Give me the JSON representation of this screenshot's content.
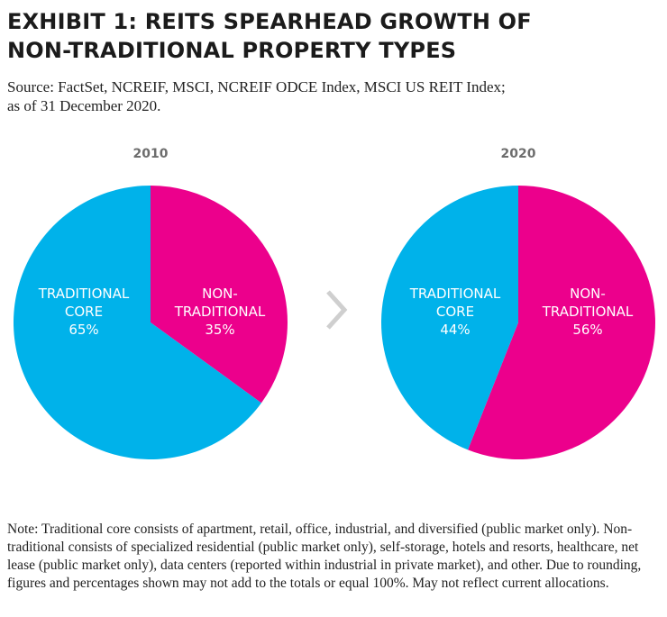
{
  "title_line1": "EXHIBIT 1: REITS SPEARHEAD GROWTH OF",
  "title_line2": "NON-TRADITIONAL PROPERTY TYPES",
  "source_line1": "Source: FactSet, NCREIF, MSCI, NCREIF ODCE Index, MSCI US REIT Index;",
  "source_line2": "as of 31 December 2020.",
  "note": "Note: Traditional core consists of apartment, retail, office, industrial, and diversified (public market only). Non-traditional consists of specialized residential (public market only), self-storage, hotels and resorts, healthcare, net lease (public market only), data centers (reported within industrial in private market), and other. Due to rounding, figures and percentages shown may not add to the totals or equal 100%. May not reflect current allocations.",
  "colors": {
    "traditional": "#00b2ea",
    "non_traditional": "#ec008c",
    "arrow": "#cfcfcf"
  },
  "icons": {
    "separator": "chevron-right-icon"
  },
  "chart_data": [
    {
      "type": "pie",
      "title": "2010",
      "slices": [
        {
          "label_lines": [
            "NON-",
            "TRADITIONAL"
          ],
          "value": 35,
          "value_label": "35%",
          "color": "#ec008c"
        },
        {
          "label_lines": [
            "TRADITIONAL",
            "CORE"
          ],
          "value": 65,
          "value_label": "65%",
          "color": "#00b2ea"
        }
      ]
    },
    {
      "type": "pie",
      "title": "2020",
      "slices": [
        {
          "label_lines": [
            "NON-",
            "TRADITIONAL"
          ],
          "value": 56,
          "value_label": "56%",
          "color": "#ec008c"
        },
        {
          "label_lines": [
            "TRADITIONAL",
            "CORE"
          ],
          "value": 44,
          "value_label": "44%",
          "color": "#00b2ea"
        }
      ]
    }
  ]
}
